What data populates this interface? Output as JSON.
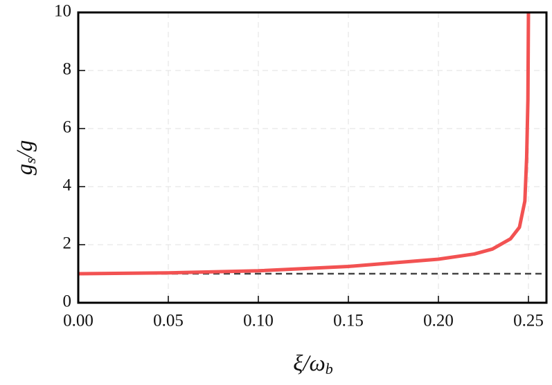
{
  "chart_data": {
    "type": "line",
    "xlabel": {
      "base": "ξ/ω",
      "sub": "b"
    },
    "ylabel": {
      "base": "g",
      "sub": "s",
      "rest": "/g"
    },
    "x": [
      0,
      0.05,
      0.1,
      0.15,
      0.2,
      0.22,
      0.23,
      0.24,
      0.245,
      0.248,
      0.249,
      0.2497,
      0.25
    ],
    "series": [
      {
        "color": "#f25252",
        "values": [
          1.0,
          1.03,
          1.1,
          1.25,
          1.5,
          1.68,
          1.85,
          2.2,
          2.6,
          3.5,
          5.0,
          7.0,
          10.0
        ]
      }
    ],
    "reference_line": {
      "y": 1,
      "color": "#444444",
      "dashed": true
    },
    "xlim": [
      0,
      0.26
    ],
    "ylim": [
      0,
      10
    ],
    "xticks": [
      {
        "value": 0,
        "label": "0.00"
      },
      {
        "value": 0.05,
        "label": "0.05"
      },
      {
        "value": 0.1,
        "label": "0.10"
      },
      {
        "value": 0.15,
        "label": "0.15"
      },
      {
        "value": 0.2,
        "label": "0.20"
      },
      {
        "value": 0.25,
        "label": "0.25"
      }
    ],
    "yticks": [
      0,
      2,
      4,
      6,
      8,
      10
    ],
    "grid": true
  }
}
